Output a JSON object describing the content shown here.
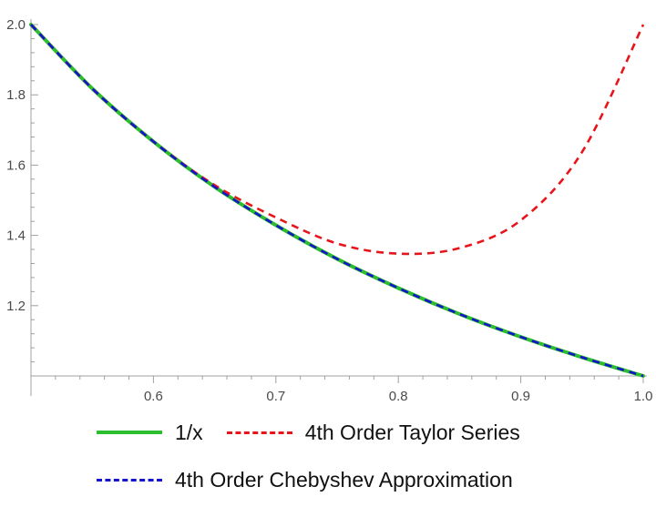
{
  "chart_data": {
    "type": "line",
    "title": "",
    "xlabel": "",
    "ylabel": "",
    "xlim": [
      0.5,
      1.0
    ],
    "ylim": [
      1.0,
      2.0
    ],
    "x_ticks_major": [
      0.6,
      0.7,
      0.8,
      0.9,
      1.0
    ],
    "x_tick_labels": [
      "0.6",
      "0.7",
      "0.8",
      "0.9",
      "1.0"
    ],
    "y_ticks_major": [
      1.2,
      1.4,
      1.6,
      1.8,
      2.0
    ],
    "y_tick_labels": [
      "1.2",
      "1.4",
      "1.6",
      "1.8",
      "2.0"
    ],
    "grid": false,
    "legend_placement": "bottom",
    "series": [
      {
        "name": "1/x",
        "color": "#2dbe2d",
        "style": "solid",
        "x": [
          0.5,
          0.55,
          0.6,
          0.65,
          0.7,
          0.75,
          0.8,
          0.85,
          0.9,
          0.95,
          1.0
        ],
        "y": [
          2.0,
          1.818,
          1.667,
          1.538,
          1.429,
          1.333,
          1.25,
          1.176,
          1.111,
          1.053,
          1.0
        ]
      },
      {
        "name": "4th Order Taylor Series",
        "color": "#e8141c",
        "style": "dashed",
        "x": [
          0.5,
          0.55,
          0.6,
          0.65,
          0.7,
          0.75,
          0.8,
          0.85,
          0.9,
          0.95,
          1.0
        ],
        "y": [
          2.0,
          1.818,
          1.667,
          1.543,
          1.451,
          1.377,
          1.348,
          1.364,
          1.443,
          1.637,
          2.0
        ]
      },
      {
        "name": "4th Order Chebyshev Approximation",
        "color": "#1414cc",
        "style": "dashed",
        "x": [
          0.5,
          0.55,
          0.6,
          0.65,
          0.7,
          0.75,
          0.8,
          0.85,
          0.9,
          0.95,
          1.0
        ],
        "y": [
          2.0,
          1.818,
          1.667,
          1.538,
          1.429,
          1.333,
          1.25,
          1.176,
          1.111,
          1.053,
          1.0
        ]
      }
    ]
  },
  "legend": {
    "row1": [
      "1/x",
      "4th Order Taylor Series"
    ],
    "row2": [
      "4th Order Chebyshev Approximation"
    ]
  }
}
